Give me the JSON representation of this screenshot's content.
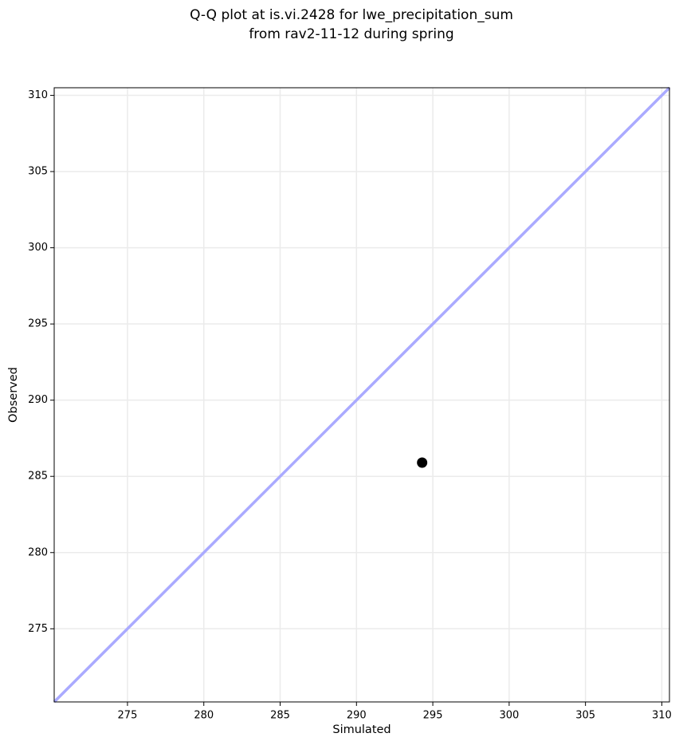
{
  "chart_data": {
    "type": "scatter",
    "title": [
      "Q-Q plot at is.vi.2428 for lwe_precipitation_sum",
      "from rav2-11-12 during spring"
    ],
    "x_label": "Simulated",
    "y_label": "Observed",
    "x": [
      294.3
    ],
    "values": [
      285.9
    ],
    "color": "#000000",
    "xlim": [
      270.2,
      310.5
    ],
    "ylim": [
      270.2,
      310.5
    ],
    "xticks": [
      275,
      280,
      285,
      290,
      295,
      300,
      305,
      310
    ],
    "yticks": [
      275,
      280,
      285,
      290,
      295,
      300,
      305,
      310
    ],
    "grid": true,
    "identity_line_color": "#aaaaff"
  }
}
